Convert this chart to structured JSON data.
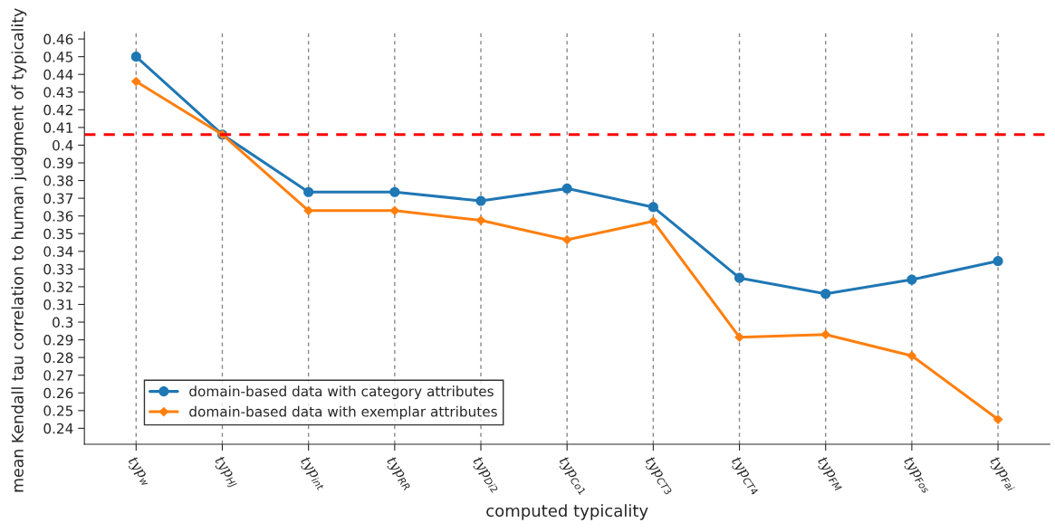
{
  "chart_data": {
    "type": "line",
    "xlabel": "computed typicality",
    "ylabel": "mean Kendall tau correlation to human judgment of typicality",
    "categories": [
      "typ$_{w}$",
      "typ$_{HJ}$",
      "typ$_{int}$",
      "typ$_{RR}$",
      "typ$_{Di2}$",
      "typ$_{Co1}$",
      "typ$_{CT3}$",
      "typ$_{CT4}$",
      "typ$_{FM}$",
      "typ$_{Fos}$",
      "typ$_{Fai}$"
    ],
    "series": [
      {
        "name": "domain-based data with category attributes",
        "color": "#1f77b4",
        "marker": "circle",
        "values": [
          0.45,
          0.406,
          0.3735,
          0.3735,
          0.3685,
          0.3755,
          0.365,
          0.325,
          0.316,
          0.324,
          0.3345
        ]
      },
      {
        "name": "domain-based data with exemplar attributes",
        "color": "#ff7f0e",
        "marker": "diamond",
        "values": [
          0.436,
          0.406,
          0.363,
          0.363,
          0.3575,
          0.3465,
          0.357,
          0.2915,
          0.293,
          0.281,
          0.245
        ]
      }
    ],
    "ylim": [
      0.231,
      0.464
    ],
    "yticks": [
      0.24,
      0.25,
      0.26,
      0.27,
      0.28,
      0.29,
      0.3,
      0.31,
      0.32,
      0.33,
      0.34,
      0.35,
      0.36,
      0.37,
      0.38,
      0.39,
      0.4,
      0.41,
      0.42,
      0.43,
      0.44,
      0.45,
      0.46
    ],
    "ref_lines": [
      {
        "axis": "y",
        "value": 0.406,
        "color": "#ff0000",
        "line_style": "dashed"
      }
    ],
    "grid": "x",
    "legend": "bottom left",
    "line_style": "solid"
  }
}
